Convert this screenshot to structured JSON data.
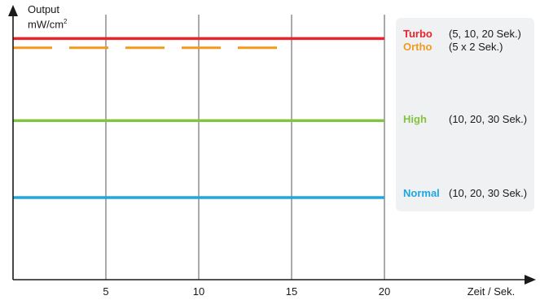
{
  "chart_data": {
    "type": "line",
    "ylabel_line1": "Output",
    "ylabel_unit": "mW/cm",
    "ylabel_sup": "2",
    "xlabel": "Zeit / Sek.",
    "xlim": [
      0,
      20
    ],
    "x_ticks": [
      "5",
      "10",
      "15",
      "20"
    ],
    "x_tick_values": [
      5,
      10,
      15,
      20
    ],
    "grid": "vertical",
    "legend_placement": "right",
    "series": [
      {
        "name": "Turbo",
        "desc": "(5, 10, 20 Sek.)",
        "color": "#e8242d",
        "style": "solid",
        "level": 0.91
      },
      {
        "name": "Ortho",
        "desc": "(5 x 2 Sek.)",
        "color": "#f39a1e",
        "style": "dashed",
        "level": 0.875
      },
      {
        "name": "High",
        "desc": "(10, 20, 30 Sek.)",
        "color": "#84c341",
        "style": "solid",
        "level": 0.6
      },
      {
        "name": "Normal",
        "desc": "(10, 20, 30 Sek.)",
        "color": "#1ea7e1",
        "style": "solid",
        "level": 0.31
      }
    ]
  }
}
